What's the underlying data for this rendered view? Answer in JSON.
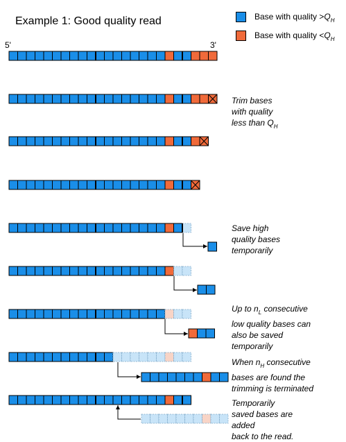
{
  "title": "Example 1: Good quality read",
  "legend": [
    {
      "label": "Base with quality >",
      "symbol": "Q",
      "sub": "H",
      "color": "#1a8ee8"
    },
    {
      "label": "Base with quality <",
      "symbol": "Q",
      "sub": "H",
      "color": "#f06a3a"
    }
  ],
  "ends": {
    "five_prime": "5'",
    "three_prime": "3'"
  },
  "colors": {
    "high": "#1a8ee8",
    "low": "#f06a3a",
    "high_faded": "#c8e4f8",
    "low_faded": "#f8d4c6"
  },
  "annotations": {
    "trim": {
      "lines": [
        "Trim bases",
        "with quality"
      ],
      "last_prefix": "less than ",
      "symbol": "Q",
      "sub": "H"
    },
    "save": {
      "lines": [
        "Save high",
        "quality bases",
        "temporarily"
      ]
    },
    "up_to": {
      "first_prefix": "Up to ",
      "symbol": "n",
      "sub": "L",
      "first_suffix": " consecutive",
      "lines": [
        "low quality bases can",
        "also be saved",
        "temporarily"
      ]
    },
    "when": {
      "first_prefix": "When ",
      "symbol": "n",
      "sub": "H",
      "first_suffix": " consecutive",
      "lines": [
        "bases are found the",
        "trimming is terminated"
      ]
    },
    "temp": {
      "lines": [
        "Temporarily",
        "saved bases are",
        "added",
        "back to the read."
      ]
    }
  }
}
